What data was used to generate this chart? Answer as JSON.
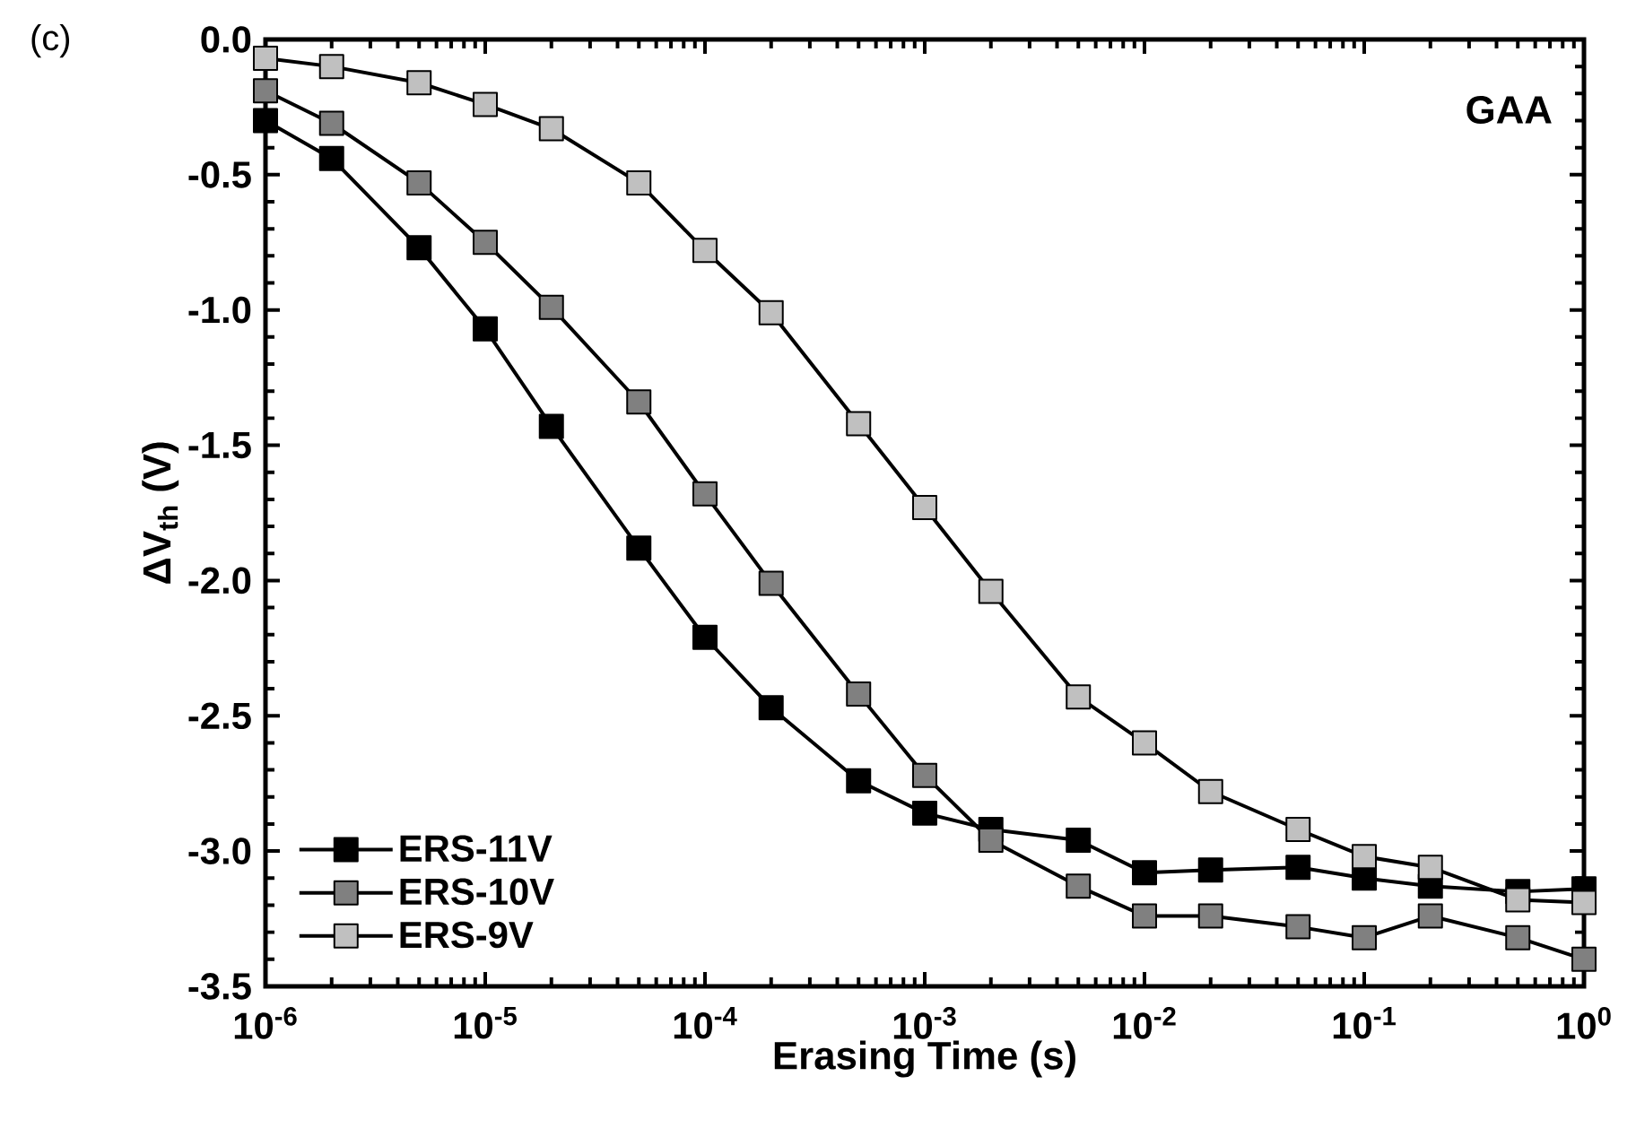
{
  "chart_data": {
    "type": "line",
    "xlabel": "Erasing Time (s)",
    "ylabel": "ΔV$_{th}$ (V)",
    "annotations": [
      "(c)",
      "GAA"
    ],
    "x": [
      1e-06,
      2e-06,
      5e-06,
      1e-05,
      2e-05,
      5e-05,
      0.0001,
      0.0002,
      0.0005,
      0.001,
      0.002,
      0.005,
      0.01,
      0.02,
      0.05,
      0.1,
      0.2,
      0.5,
      1
    ],
    "series": [
      {
        "name": "ERS-11V",
        "color": "#000000",
        "values": [
          -0.3,
          -0.44,
          -0.77,
          -1.07,
          -1.43,
          -1.88,
          -2.21,
          -2.47,
          -2.74,
          -2.86,
          -2.92,
          -2.96,
          -3.08,
          -3.07,
          -3.06,
          -3.1,
          -3.13,
          -3.15,
          -3.14
        ]
      },
      {
        "name": "ERS-10V",
        "color": "#808080",
        "values": [
          -0.19,
          -0.31,
          -0.53,
          -0.75,
          -0.99,
          -1.34,
          -1.68,
          -2.01,
          -2.42,
          -2.72,
          -2.96,
          -3.13,
          -3.24,
          -3.24,
          -3.28,
          -3.32,
          -3.24,
          -3.32,
          -3.4
        ]
      },
      {
        "name": "ERS-9V",
        "color": "#c0c0c0",
        "values": [
          -0.07,
          -0.1,
          -0.16,
          -0.24,
          -0.33,
          -0.53,
          -0.78,
          -1.01,
          -1.42,
          -1.73,
          -2.04,
          -2.43,
          -2.6,
          -2.78,
          -2.92,
          -3.02,
          -3.06,
          -3.18,
          -3.19
        ]
      }
    ],
    "log": "x",
    "xlim": [
      1e-06,
      1
    ],
    "ylim": [
      -3.5,
      0.0
    ],
    "xticks": [
      {
        "value": 1e-06,
        "label": "10$^{-6}$"
      },
      {
        "value": 1e-05,
        "label": "10$^{-5}$"
      },
      {
        "value": 0.0001,
        "label": "10$^{-4}$"
      },
      {
        "value": 0.001,
        "label": "10$^{-3}$"
      },
      {
        "value": 0.01,
        "label": "10$^{-2}$"
      },
      {
        "value": 0.1,
        "label": "10$^{-1}$"
      },
      {
        "value": 1,
        "label": "10$^{0}$"
      }
    ],
    "yticks": [
      {
        "value": -3.5,
        "label": "-3.5"
      },
      {
        "value": -3.0,
        "label": "-3.0"
      },
      {
        "value": -2.5,
        "label": "-2.5"
      },
      {
        "value": -2.0,
        "label": "-2.0"
      },
      {
        "value": -1.5,
        "label": "-1.5"
      },
      {
        "value": -1.0,
        "label": "-1.0"
      },
      {
        "value": -0.5,
        "label": "-0.5"
      },
      {
        "value": 0.0,
        "label": "0.0"
      }
    ],
    "legend": "bottom left",
    "marker": "square",
    "line_style": "solid",
    "grid": false
  }
}
